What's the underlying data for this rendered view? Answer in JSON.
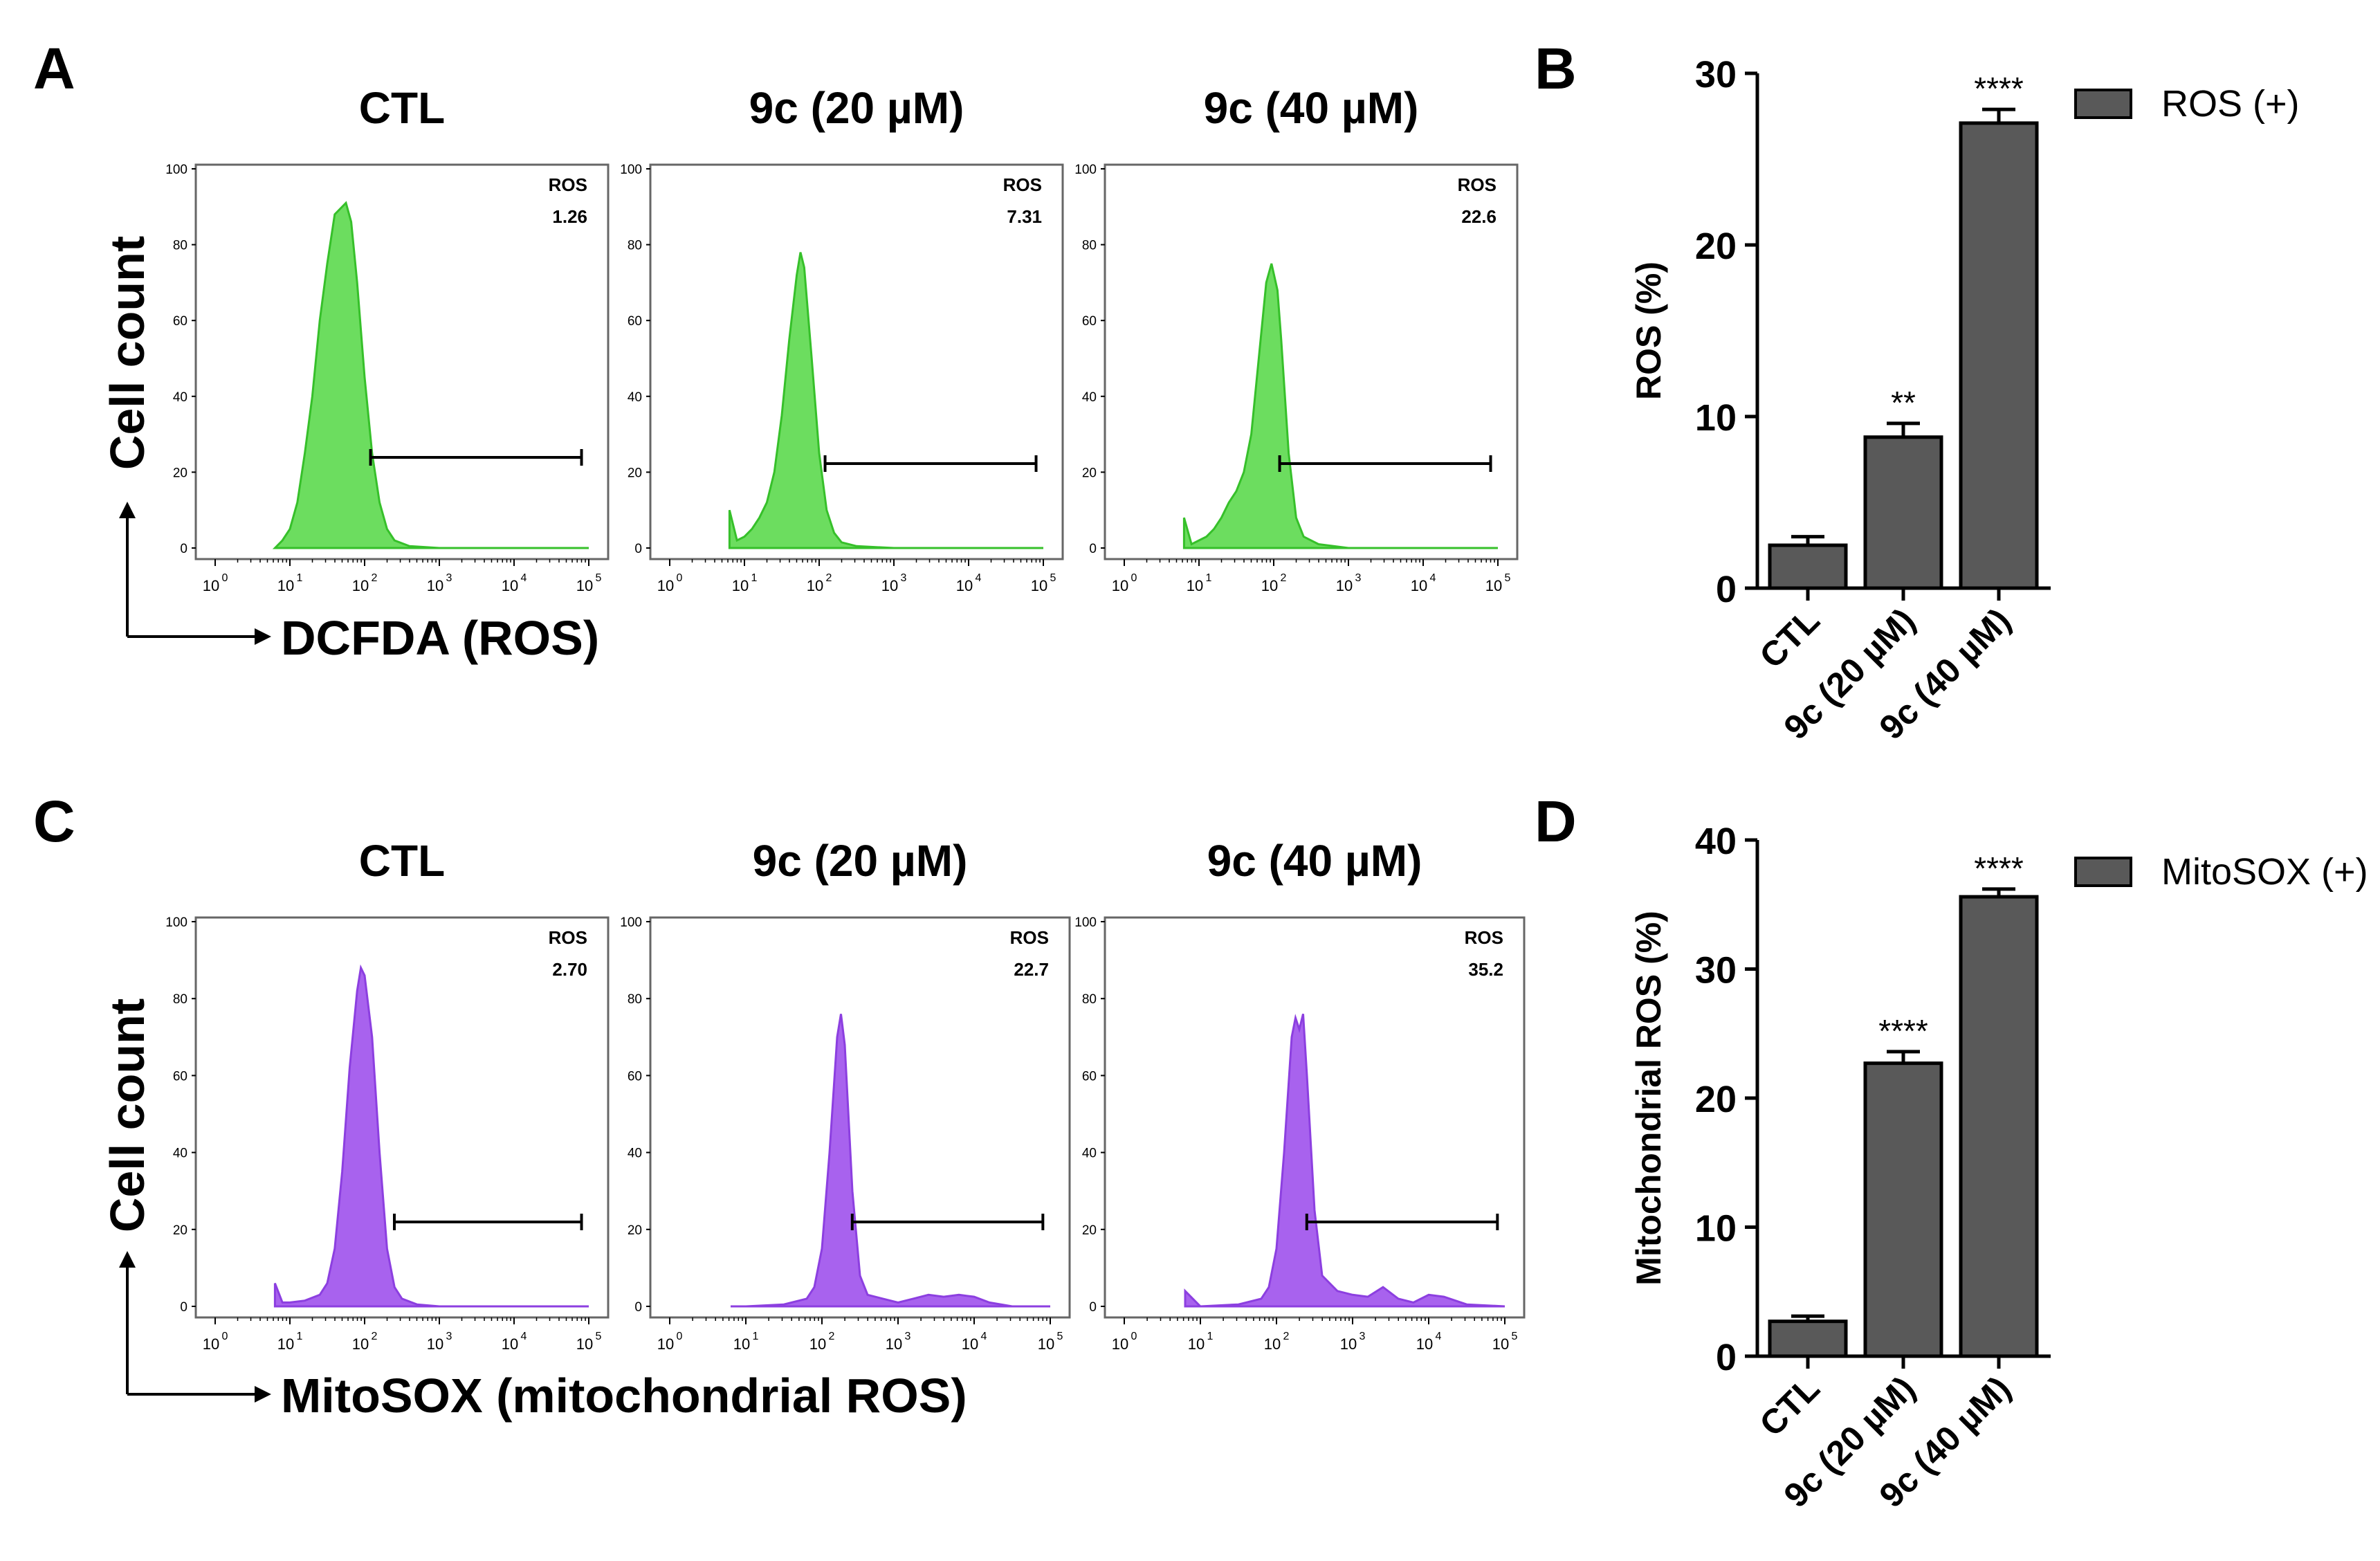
{
  "chart_data": [
    {
      "panel": "A",
      "type": "area",
      "kind": "flow-cytometry-histograms",
      "ylabel": "Cell count",
      "xlabel": "DCFDA (ROS)",
      "color": "#6cdd5f",
      "yticks": [
        "0",
        "20",
        "40",
        "60",
        "80",
        "100"
      ],
      "xticks_exp": [
        "0",
        "1",
        "2",
        "3",
        "4",
        "5"
      ],
      "gate_range": [
        120,
        80000
      ],
      "histograms": [
        {
          "title": "CTL",
          "gate_label": "ROS",
          "gate_value": "1.26",
          "x": [
            0.8,
            0.9,
            1.0,
            1.1,
            1.2,
            1.3,
            1.4,
            1.5,
            1.6,
            1.7,
            1.75,
            1.82,
            1.9,
            2.0,
            2.1,
            2.2,
            2.3,
            2.4,
            2.6,
            3.0,
            4.0,
            5.0
          ],
          "y": [
            0,
            2,
            5,
            12,
            25,
            40,
            60,
            75,
            88,
            90,
            91,
            86,
            70,
            45,
            25,
            12,
            5,
            2,
            0.5,
            0,
            0,
            0
          ]
        },
        {
          "title": "9c (20 µM)",
          "gate_label": "ROS",
          "gate_value": "7.31",
          "x": [
            0.8,
            0.9,
            1.0,
            1.1,
            1.2,
            1.3,
            1.4,
            1.5,
            1.6,
            1.7,
            1.75,
            1.8,
            1.9,
            2.0,
            2.1,
            2.2,
            2.3,
            2.5,
            3.0,
            4.0,
            5.0
          ],
          "y": [
            10,
            2,
            3,
            5,
            8,
            12,
            20,
            35,
            55,
            72,
            78,
            74,
            50,
            25,
            10,
            4,
            1.5,
            0.5,
            0,
            0,
            0
          ]
        },
        {
          "title": "9c (40 µM)",
          "gate_label": "ROS",
          "gate_value": "22.6",
          "x": [
            0.8,
            0.9,
            1.0,
            1.1,
            1.2,
            1.3,
            1.4,
            1.5,
            1.6,
            1.7,
            1.8,
            1.9,
            1.97,
            2.05,
            2.1,
            2.2,
            2.3,
            2.4,
            2.6,
            3.0,
            4.0,
            5.0
          ],
          "y": [
            8,
            1,
            2,
            3,
            5,
            8,
            12,
            15,
            20,
            30,
            50,
            70,
            75,
            68,
            55,
            25,
            8,
            3,
            1,
            0,
            0,
            0
          ]
        }
      ]
    },
    {
      "panel": "B",
      "type": "bar",
      "categories": [
        "CTL",
        "9c (20 µM)",
        "9c (40 µM)"
      ],
      "series": [
        {
          "name": "ROS (+)",
          "values": [
            2.5,
            8.8,
            27.1
          ],
          "errors": [
            0.5,
            0.8,
            0.8
          ]
        }
      ],
      "significance": [
        "",
        "**",
        "****"
      ],
      "ylabel": "ROS (%)",
      "yticks": [
        0,
        10,
        20,
        30
      ],
      "ylim": [
        0,
        30
      ],
      "legend": "top-right",
      "bar_color": "#595959"
    },
    {
      "panel": "C",
      "type": "area",
      "kind": "flow-cytometry-histograms",
      "ylabel": "Cell count",
      "xlabel": "MitoSOX (mitochondrial ROS)",
      "color": "#a862ee",
      "yticks": [
        "0",
        "20",
        "40",
        "60",
        "80",
        "100"
      ],
      "xticks_exp": [
        "0",
        "1",
        "2",
        "3",
        "4",
        "5"
      ],
      "gate_range": [
        250,
        80000
      ],
      "histograms": [
        {
          "title": "CTL",
          "gate_label": "ROS",
          "gate_value": "2.70",
          "x": [
            0.8,
            0.9,
            1.0,
            1.2,
            1.4,
            1.5,
            1.6,
            1.7,
            1.8,
            1.9,
            1.95,
            2.0,
            2.1,
            2.2,
            2.3,
            2.4,
            2.5,
            2.7,
            3.0,
            4.0,
            5.0
          ],
          "y": [
            6,
            1,
            1,
            1.5,
            3,
            6,
            15,
            35,
            62,
            82,
            88,
            86,
            70,
            40,
            15,
            5,
            2,
            0.5,
            0,
            0,
            0
          ]
        },
        {
          "title": "9c (20 µM)",
          "gate_label": "ROS",
          "gate_value": "22.7",
          "x": [
            0.8,
            1.0,
            1.5,
            1.8,
            1.9,
            2.0,
            2.1,
            2.2,
            2.25,
            2.3,
            2.4,
            2.5,
            2.6,
            2.8,
            3.0,
            3.2,
            3.4,
            3.6,
            3.8,
            4.0,
            4.2,
            4.5,
            5.0
          ],
          "y": [
            0,
            0,
            0.5,
            2,
            5,
            15,
            40,
            70,
            76,
            68,
            30,
            8,
            3,
            2,
            1,
            2,
            3,
            2.5,
            3,
            2.5,
            1,
            0,
            0
          ]
        },
        {
          "title": "9c (40 µM)",
          "gate_label": "ROS",
          "gate_value": "35.2",
          "x": [
            0.8,
            1.0,
            1.5,
            1.8,
            1.9,
            2.0,
            2.1,
            2.2,
            2.25,
            2.3,
            2.35,
            2.4,
            2.5,
            2.6,
            2.8,
            3.0,
            3.2,
            3.4,
            3.6,
            3.8,
            4.0,
            4.2,
            4.5,
            5.0
          ],
          "y": [
            4,
            0,
            0.5,
            2,
            5,
            15,
            40,
            70,
            75,
            72,
            76,
            60,
            25,
            8,
            4,
            3,
            2.5,
            5,
            2,
            1,
            3,
            2.5,
            0.5,
            0
          ]
        }
      ]
    },
    {
      "panel": "D",
      "type": "bar",
      "categories": [
        "CTL",
        "9c (20 µM)",
        "9c (40 µM)"
      ],
      "series": [
        {
          "name": "MitoSOX (+)",
          "values": [
            2.7,
            22.7,
            35.6
          ],
          "errors": [
            0.4,
            0.9,
            0.6
          ]
        }
      ],
      "significance": [
        "",
        "****",
        "****"
      ],
      "ylabel": "Mitochondrial ROS (%)",
      "yticks": [
        0,
        10,
        20,
        30,
        40
      ],
      "ylim": [
        0,
        40
      ],
      "legend": "top-right",
      "bar_color": "#595959"
    }
  ]
}
